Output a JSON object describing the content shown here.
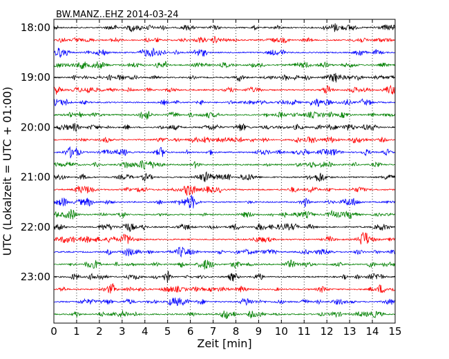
{
  "chart_data": {
    "type": "line",
    "title": "BW.MANZ..EHZ 2014-03-24",
    "xlabel": "Zeit  [min]",
    "ylabel": "UTC (Lokalzeit = UTC + 01:00)",
    "xlim": [
      0,
      15
    ],
    "x_ticks": [
      0,
      1,
      2,
      3,
      4,
      5,
      6,
      7,
      8,
      9,
      10,
      11,
      12,
      13,
      14,
      15
    ],
    "x_tick_labels": [
      "0",
      "1",
      "2",
      "3",
      "4",
      "5",
      "6",
      "7",
      "8",
      "9",
      "10",
      "11",
      "12",
      "13",
      "14",
      "15"
    ],
    "y_tick_labels": [
      {
        "label": "18:00",
        "row": 0
      },
      {
        "label": "19:00",
        "row": 4
      },
      {
        "label": "20:00",
        "row": 8
      },
      {
        "label": "21:00",
        "row": 12
      },
      {
        "label": "22:00",
        "row": 16
      },
      {
        "label": "23:00",
        "row": 20
      }
    ],
    "rows_per_hour": 4,
    "row_count": 24,
    "vertical_grid": "dotted",
    "colors": [
      "#000000",
      "#ff0000",
      "#0000ff",
      "#008000"
    ]
  }
}
